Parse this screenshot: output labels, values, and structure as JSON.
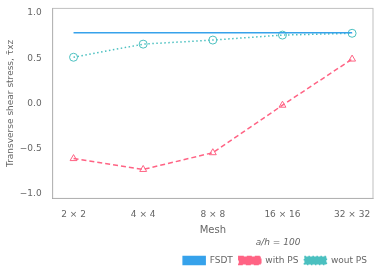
{
  "chart_data": {
    "type": "line",
    "xlabel": "Mesh",
    "ylabel": "Transverse shear stress, τ̄xz",
    "legend_title": "a/h = 100",
    "x": [
      1,
      2,
      3,
      4,
      5
    ],
    "xlim": [
      0.7,
      5.3
    ],
    "xticks": [
      {
        "value": 1,
        "label": "2 × 2"
      },
      {
        "value": 2,
        "label": "4 × 4"
      },
      {
        "value": 3,
        "label": "8 × 8"
      },
      {
        "value": 4,
        "label": "16 × 16"
      },
      {
        "value": 5,
        "label": "32 × 32"
      }
    ],
    "ylim": [
      -1.05,
      1.05
    ],
    "yticks": [
      {
        "value": -1,
        "label": "−1.0"
      },
      {
        "value": -0.5,
        "label": "−0.5"
      },
      {
        "value": 0,
        "label": "0.0"
      },
      {
        "value": 0.5,
        "label": "0.5"
      },
      {
        "value": 1,
        "label": "1.0"
      }
    ],
    "grid": false,
    "legend": "lower right",
    "series": [
      {
        "name": "FSDT",
        "x": [
          1,
          5
        ],
        "values": [
          0.78,
          0.78
        ],
        "line_style": "solid",
        "marker": "none"
      },
      {
        "name": "with PS",
        "values": [
          -0.61,
          -0.73,
          -0.545,
          -0.02,
          0.49
        ],
        "line_style": "dashed",
        "marker": "triangle"
      },
      {
        "name": "wout PS",
        "values": [
          0.51,
          0.655,
          0.7,
          0.755,
          0.775
        ],
        "line_style": "dotted",
        "marker": "circle"
      }
    ]
  }
}
